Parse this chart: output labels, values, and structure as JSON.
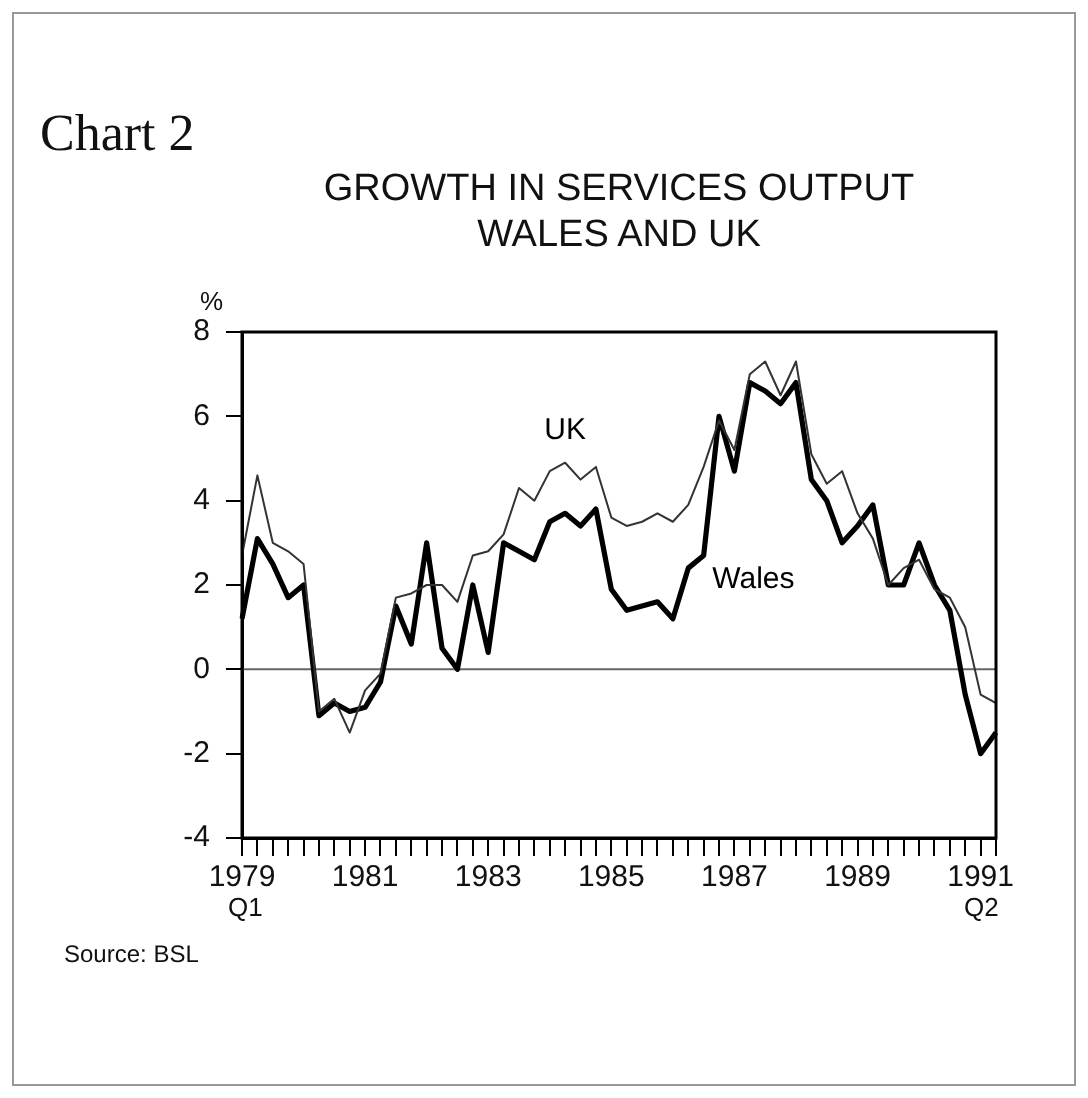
{
  "chart_data": {
    "type": "line",
    "title": "GROWTH IN SERVICES OUTPUT",
    "subtitle": "WALES AND UK",
    "ylabel": "%",
    "annotations": [
      "Chart 2",
      "Q1",
      "Q2",
      "Source: BSL"
    ],
    "categories": [
      "1979",
      null,
      null,
      null,
      null,
      null,
      null,
      null,
      "1981",
      null,
      null,
      null,
      null,
      null,
      null,
      null,
      "1983",
      null,
      null,
      null,
      null,
      null,
      null,
      null,
      "1985",
      null,
      null,
      null,
      null,
      null,
      null,
      null,
      "1987",
      null,
      null,
      null,
      null,
      null,
      null,
      null,
      "1989",
      null,
      null,
      null,
      null,
      null,
      null,
      null,
      "1991",
      null
    ],
    "series": [
      {
        "name": "UK",
        "color": "#333333",
        "values": [
          2.7,
          4.6,
          3.0,
          2.8,
          2.5,
          -1.0,
          -0.7,
          -1.5,
          -0.5,
          -0.1,
          1.7,
          1.8,
          2.0,
          2.0,
          1.6,
          2.7,
          2.8,
          3.2,
          4.3,
          4.0,
          4.7,
          4.9,
          4.5,
          4.8,
          3.6,
          3.4,
          3.5,
          3.7,
          3.5,
          3.9,
          4.8,
          5.9,
          5.2,
          7.0,
          7.3,
          6.5,
          7.3,
          5.1,
          4.4,
          4.7,
          3.7,
          3.1,
          2.0,
          2.4,
          2.6,
          1.9,
          1.7,
          1.0,
          -0.6,
          -0.8
        ]
      },
      {
        "name": "Wales",
        "color": "#000000",
        "values": [
          1.2,
          3.1,
          2.5,
          1.7,
          2.0,
          -1.1,
          -0.8,
          -1.0,
          -0.9,
          -0.3,
          1.5,
          0.6,
          3.0,
          0.5,
          0.0,
          2.0,
          0.4,
          3.0,
          2.8,
          2.6,
          3.5,
          3.7,
          3.4,
          3.8,
          1.9,
          1.4,
          1.5,
          1.6,
          1.2,
          2.4,
          2.7,
          6.0,
          4.7,
          6.8,
          6.6,
          6.3,
          6.8,
          4.5,
          4.0,
          3.0,
          3.4,
          3.9,
          2.0,
          2.0,
          3.0,
          2.0,
          1.4,
          -0.6,
          -2.0,
          -1.5
        ]
      }
    ],
    "ylim": [
      -4,
      8
    ],
    "yticks": [
      -4,
      -2,
      0,
      2,
      4,
      6,
      8
    ],
    "ref_lines": [
      {
        "axis": "y",
        "value": 0,
        "color": "#666666"
      }
    ],
    "grid": false,
    "legend": false,
    "marker": "none",
    "line_style": "solid"
  }
}
